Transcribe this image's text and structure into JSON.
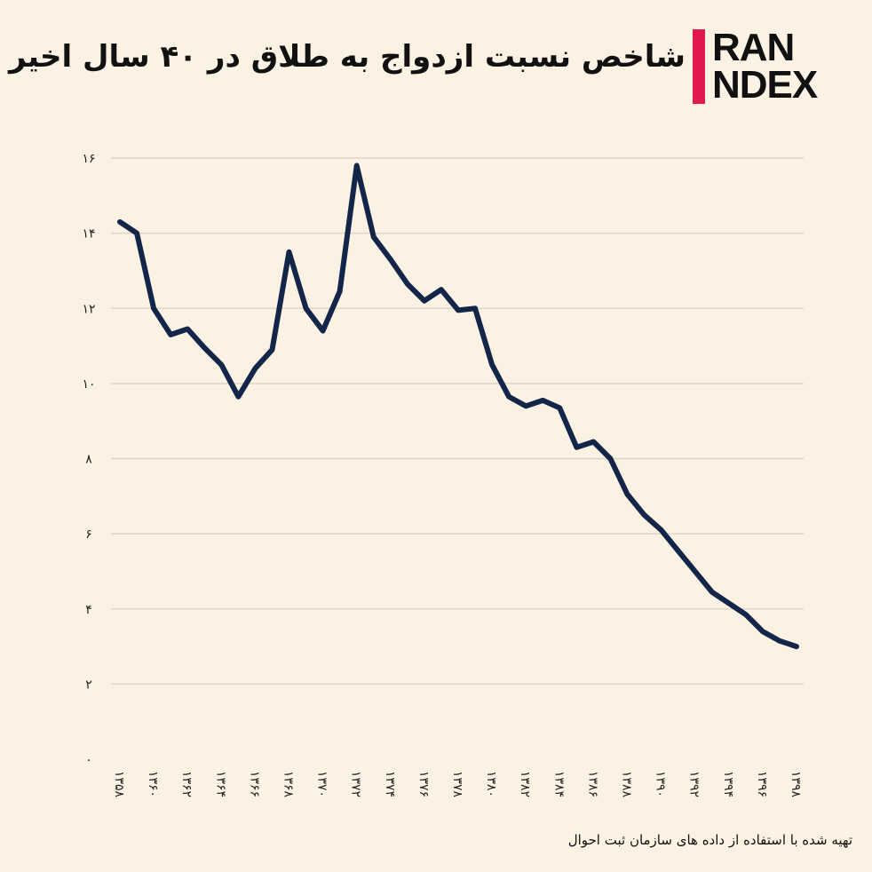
{
  "header": {
    "title": "شاخص نسبت ازدواج به طلاق در ۴۰ سال اخیر",
    "logo_text": "IRAN INDEX",
    "logo_line1": "RAN",
    "logo_line2": "NDEX",
    "logo_accent_color": "#e0194f"
  },
  "footer": {
    "source": "تهیه شده با استفاده از داده های سازمان ثبت احوال"
  },
  "colors": {
    "background": "#fbf2e3",
    "line": "#14254a",
    "grid": "#ddd5c6"
  },
  "chart_data": {
    "type": "line",
    "title": "شاخص نسبت ازدواج به طلاق در ۴۰ سال اخیر",
    "xlabel": "",
    "ylabel": "",
    "ylim": [
      0,
      16
    ],
    "grid": "horizontal",
    "yticks": [
      0,
      2,
      4,
      6,
      8,
      10,
      12,
      14,
      16
    ],
    "ytick_labels": [
      "۰",
      "۲",
      "۴",
      "۶",
      "۸",
      "۱۰",
      "۱۲",
      "۱۴",
      "۱۶"
    ],
    "xtick_labels": [
      "۱۳۵۸",
      "۱۳۶۰",
      "۱۳۶۲",
      "۱۳۶۴",
      "۱۳۶۶",
      "۱۳۶۸",
      "۱۳۷۰",
      "۱۳۷۲",
      "۱۳۷۴",
      "۱۳۷۶",
      "۱۳۷۸",
      "۱۳۸۰",
      "۱۳۸۲",
      "۱۳۸۴",
      "۱۳۸۶",
      "۱۳۸۸",
      "۱۳۹۰",
      "۱۳۹۲",
      "۱۳۹۴",
      "۱۳۹۶",
      "۱۳۹۸"
    ],
    "x": [
      1358,
      1359,
      1360,
      1361,
      1362,
      1363,
      1364,
      1365,
      1366,
      1367,
      1368,
      1369,
      1370,
      1371,
      1372,
      1373,
      1374,
      1375,
      1376,
      1377,
      1378,
      1379,
      1380,
      1381,
      1382,
      1383,
      1384,
      1385,
      1386,
      1387,
      1388,
      1389,
      1390,
      1391,
      1392,
      1393,
      1394,
      1395,
      1396,
      1397,
      1398
    ],
    "values": [
      14.3,
      14.0,
      12.0,
      11.3,
      11.45,
      10.95,
      10.5,
      9.65,
      10.4,
      10.9,
      13.5,
      12.0,
      11.4,
      12.45,
      15.8,
      13.9,
      13.3,
      12.65,
      12.2,
      12.5,
      11.95,
      12.0,
      10.5,
      9.65,
      9.4,
      9.55,
      9.35,
      8.3,
      8.45,
      8.0,
      7.05,
      6.5,
      6.1,
      5.55,
      5.0,
      4.45,
      4.15,
      3.85,
      3.4,
      3.15,
      3.0
    ]
  }
}
